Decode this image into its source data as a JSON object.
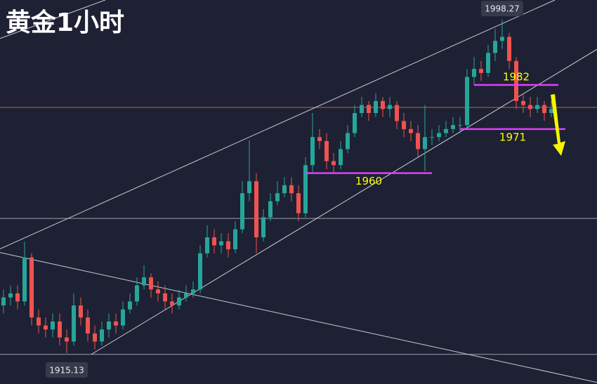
{
  "chart_data": {
    "type": "candlestick",
    "title": "黄金1小时",
    "ylim": [
      1907.4,
      2003.2
    ],
    "xlim": [
      -0.5,
      84.5
    ],
    "up_color": "#26a69a",
    "down_color": "#ef5350",
    "open": [
      1927,
      1929,
      1930,
      1928,
      1939,
      1924,
      1922,
      1921,
      1923,
      1919,
      1918,
      1927,
      1924,
      1920,
      1918,
      1921,
      1923,
      1922,
      1926,
      1928,
      1932,
      1934,
      1931,
      1930,
      1928,
      1927,
      1929,
      1930,
      1931,
      1940,
      1944,
      1942,
      1943,
      1941,
      1946,
      1955,
      1958,
      1944,
      1949,
      1953,
      1955,
      1957,
      1955,
      1950,
      1962,
      1969,
      1968,
      1963,
      1962,
      1966,
      1970,
      1975,
      1977,
      1975,
      1978,
      1976,
      1977,
      1973,
      1971,
      1970,
      1966,
      1969,
      1969,
      1970,
      1971,
      1972,
      1972,
      1984,
      1986,
      1985,
      1990,
      1993,
      1994,
      1988,
      1978,
      1977,
      1976,
      1977,
      1975
    ],
    "high": [
      1931,
      1932,
      1932,
      1942.8,
      1940,
      1926,
      1924,
      1925,
      1925,
      1921,
      1930,
      1929,
      1926,
      1922,
      1923,
      1925,
      1925,
      1928,
      1930,
      1934,
      1937,
      1935,
      1933,
      1932,
      1930,
      1931,
      1932,
      1933,
      1942,
      1947,
      1946,
      1945,
      1945,
      1948,
      1958,
      1968.2,
      1960,
      1951,
      1955,
      1958,
      1959,
      1959,
      1957,
      1964,
      1975,
      1971,
      1970,
      1965,
      1968,
      1972,
      1977,
      1979,
      1978,
      1980,
      1979,
      1979,
      1978,
      1975,
      1973,
      1972,
      1977,
      1971,
      1972,
      1973,
      1974,
      1974,
      1986,
      1989,
      1988,
      1992,
      1996,
      1998.27,
      1995,
      1989,
      1980,
      1979,
      1979,
      1978,
      1978
    ],
    "low": [
      1925,
      1927,
      1926,
      1927,
      1922,
      1920,
      1919,
      1919,
      1917,
      1915.13,
      1917,
      1922,
      1918,
      1916,
      1917,
      1919,
      1920,
      1921,
      1925,
      1927,
      1931,
      1929,
      1928,
      1926,
      1925,
      1926,
      1928,
      1929,
      1930,
      1939,
      1940,
      1940,
      1939,
      1940,
      1945,
      1953,
      1940,
      1943,
      1948,
      1952,
      1954,
      1953,
      1948,
      1949,
      1960,
      1966,
      1961,
      1960,
      1961,
      1965,
      1969,
      1974,
      1973,
      1974,
      1974,
      1974,
      1971,
      1969,
      1968,
      1964,
      1960.5,
      1967,
      1968,
      1969,
      1970,
      1970,
      1971,
      1982,
      1983,
      1984,
      1988,
      1991,
      1986,
      1976,
      1975,
      1974,
      1975,
      1973,
      1974
    ],
    "close": [
      1929,
      1930,
      1928,
      1939,
      1924,
      1922,
      1921,
      1923,
      1919,
      1918,
      1927,
      1924,
      1920,
      1918,
      1921,
      1923,
      1922,
      1926,
      1928,
      1932,
      1934,
      1931,
      1930,
      1928,
      1927,
      1929,
      1930,
      1931,
      1940,
      1944,
      1942,
      1943,
      1941,
      1946,
      1955,
      1958,
      1944,
      1949,
      1953,
      1955,
      1957,
      1955,
      1950,
      1962,
      1969,
      1968,
      1963,
      1962,
      1966,
      1970,
      1975,
      1977,
      1975,
      1978,
      1976,
      1977,
      1973,
      1971,
      1970,
      1966,
      1969,
      1969,
      1970,
      1971,
      1972,
      1972,
      1984,
      1986,
      1985,
      1990,
      1993,
      1994,
      1988,
      1978,
      1977,
      1976,
      1977,
      1975,
      1976
    ],
    "high_label": 1998.27,
    "low_label": 1915.13,
    "levels": [
      {
        "value": 1982,
        "from": 67,
        "to": 79
      },
      {
        "value": 1971,
        "from": 65,
        "to": 80
      },
      {
        "value": 1960,
        "from": 43,
        "to": 61
      }
    ],
    "level_color": "#e040fb",
    "level_label_color": "#ffff00",
    "hlines": [
      1948.7,
      1914.8
    ],
    "hline_color": "#9aa0ad",
    "price_line": 1976.4,
    "price_line_color": "#b06a4a",
    "trendlines": [
      [
        [
          -0.5,
          1941.1
        ],
        [
          78.5,
          2003.2
        ]
      ],
      [
        [
          -0.5,
          1993.6
        ],
        [
          14.5,
          2003.2
        ]
      ],
      [
        [
          12.5,
          1914.8
        ],
        [
          84.5,
          1990.9
        ]
      ],
      [
        [
          -0.5,
          1940.2
        ],
        [
          84.5,
          1907.8
        ]
      ]
    ],
    "trendline_color": "#c8ccd4"
  }
}
